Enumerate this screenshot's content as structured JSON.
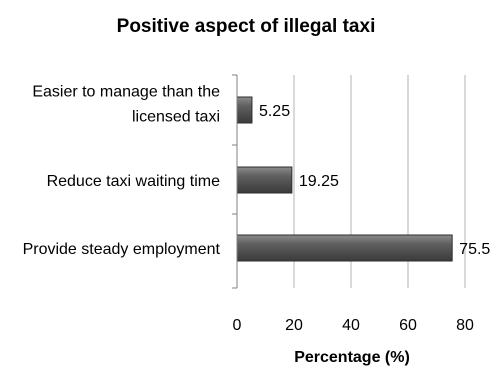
{
  "chart_data": {
    "type": "bar",
    "orientation": "horizontal",
    "title": "Positive aspect of illegal taxi",
    "xlabel": "Percentage (%)",
    "ylabel": "",
    "categories": [
      [
        "Easier to manage than the",
        "licensed taxi"
      ],
      [
        "Reduce taxi waiting time"
      ],
      [
        "Provide steady employment"
      ]
    ],
    "values": [
      5.25,
      19.25,
      75.5
    ],
    "value_labels": [
      "5.25",
      "19.25",
      "75.5"
    ],
    "xlim": [
      0,
      80
    ],
    "xticks": [
      0,
      20,
      40,
      60,
      80
    ],
    "grid": "vertical",
    "legend": "none",
    "bar_color": "#595959"
  }
}
